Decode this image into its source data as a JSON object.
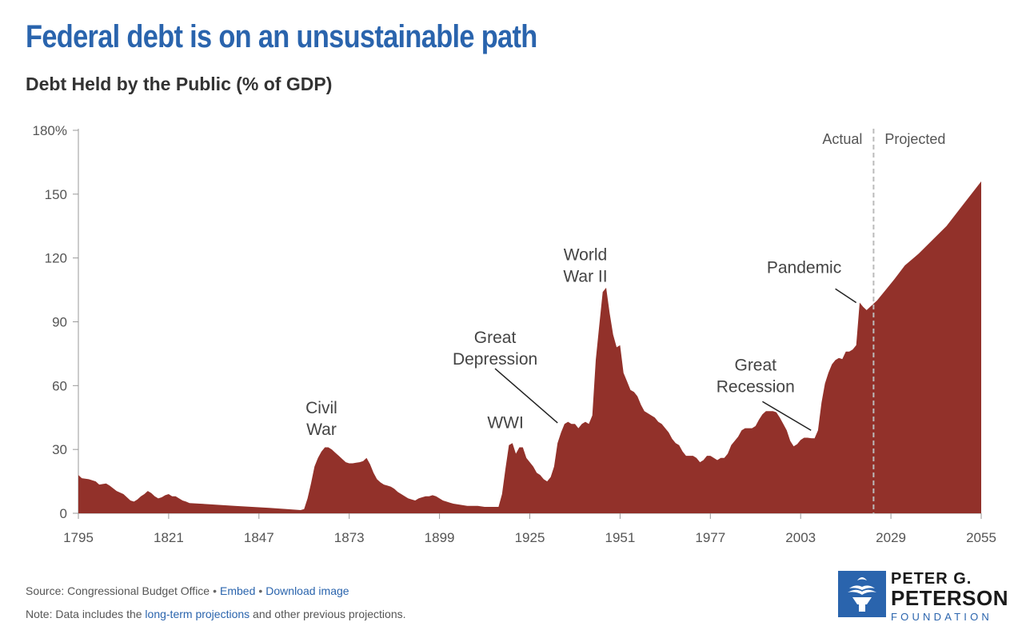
{
  "header": {
    "title": "Federal debt is on an unsustainable path",
    "subtitle": "Debt Held by the Public (% of GDP)"
  },
  "colors": {
    "title": "#2a64ad",
    "area": "#92312a",
    "link": "#2a64ad",
    "axis": "#999999"
  },
  "chart_data": {
    "type": "area",
    "title": "",
    "xlabel": "",
    "ylabel": "",
    "xlim": [
      1795,
      2055
    ],
    "ylim": [
      0,
      180
    ],
    "x_ticks": [
      "1795",
      "1821",
      "1847",
      "1873",
      "1899",
      "1925",
      "1951",
      "1977",
      "2003",
      "2029",
      "2055"
    ],
    "y_ticks": [
      "0",
      "30",
      "60",
      "90",
      "120",
      "150",
      "180%"
    ],
    "grid": false,
    "divider": {
      "x": 2024,
      "left_label": "Actual",
      "right_label": "Projected"
    },
    "series": [
      {
        "points": [
          [
            1795,
            18
          ],
          [
            1796,
            16.5
          ],
          [
            1798,
            16
          ],
          [
            1800,
            15
          ],
          [
            1801,
            13.5
          ],
          [
            1803,
            14
          ],
          [
            1804,
            13
          ],
          [
            1806,
            10.5
          ],
          [
            1808,
            9
          ],
          [
            1810,
            6
          ],
          [
            1811,
            5.5
          ],
          [
            1812,
            6.5
          ],
          [
            1813,
            8
          ],
          [
            1814,
            9
          ],
          [
            1815,
            10.5
          ],
          [
            1816,
            9.5
          ],
          [
            1817,
            8
          ],
          [
            1818,
            7
          ],
          [
            1819,
            7.5
          ],
          [
            1820,
            8.5
          ],
          [
            1821,
            9
          ],
          [
            1822,
            8
          ],
          [
            1823,
            8
          ],
          [
            1824,
            7
          ],
          [
            1825,
            6
          ],
          [
            1826,
            5.5
          ],
          [
            1827,
            4.8
          ],
          [
            1830,
            4.5
          ],
          [
            1840,
            3.5
          ],
          [
            1850,
            2.5
          ],
          [
            1855,
            2
          ],
          [
            1859,
            1.5
          ],
          [
            1860,
            2
          ],
          [
            1861,
            7
          ],
          [
            1862,
            14
          ],
          [
            1863,
            22
          ],
          [
            1864,
            26
          ],
          [
            1865,
            29
          ],
          [
            1866,
            31
          ],
          [
            1867,
            31
          ],
          [
            1868,
            30
          ],
          [
            1869,
            28.5
          ],
          [
            1870,
            27
          ],
          [
            1871,
            25.5
          ],
          [
            1872,
            24
          ],
          [
            1873,
            23.5
          ],
          [
            1874,
            23.5
          ],
          [
            1875,
            23.8
          ],
          [
            1876,
            24
          ],
          [
            1877,
            24.5
          ],
          [
            1878,
            26
          ],
          [
            1879,
            23
          ],
          [
            1880,
            19
          ],
          [
            1881,
            16
          ],
          [
            1882,
            14.5
          ],
          [
            1883,
            13.5
          ],
          [
            1884,
            13
          ],
          [
            1885,
            12.5
          ],
          [
            1886,
            11.5
          ],
          [
            1887,
            10
          ],
          [
            1888,
            9
          ],
          [
            1889,
            8
          ],
          [
            1890,
            7
          ],
          [
            1891,
            6.5
          ],
          [
            1892,
            6
          ],
          [
            1893,
            7
          ],
          [
            1894,
            7.5
          ],
          [
            1895,
            8
          ],
          [
            1896,
            8
          ],
          [
            1897,
            8.5
          ],
          [
            1898,
            8
          ],
          [
            1899,
            7
          ],
          [
            1900,
            6
          ],
          [
            1901,
            5.5
          ],
          [
            1902,
            5
          ],
          [
            1903,
            4.5
          ],
          [
            1905,
            4
          ],
          [
            1907,
            3.5
          ],
          [
            1910,
            3.5
          ],
          [
            1912,
            3
          ],
          [
            1914,
            3
          ],
          [
            1915,
            3
          ],
          [
            1916,
            3
          ],
          [
            1917,
            9
          ],
          [
            1918,
            21
          ],
          [
            1919,
            32
          ],
          [
            1920,
            33
          ],
          [
            1921,
            28
          ],
          [
            1922,
            31
          ],
          [
            1923,
            31
          ],
          [
            1924,
            26
          ],
          [
            1925,
            24
          ],
          [
            1926,
            22
          ],
          [
            1927,
            19
          ],
          [
            1928,
            18
          ],
          [
            1929,
            16
          ],
          [
            1930,
            15
          ],
          [
            1931,
            17
          ],
          [
            1932,
            22
          ],
          [
            1933,
            33
          ],
          [
            1934,
            38
          ],
          [
            1935,
            42
          ],
          [
            1936,
            43
          ],
          [
            1937,
            42
          ],
          [
            1938,
            42
          ],
          [
            1939,
            40
          ],
          [
            1940,
            42
          ],
          [
            1941,
            43
          ],
          [
            1942,
            42
          ],
          [
            1943,
            46
          ],
          [
            1944,
            72
          ],
          [
            1945,
            88
          ],
          [
            1946,
            104
          ],
          [
            1947,
            106
          ],
          [
            1948,
            94
          ],
          [
            1949,
            84
          ],
          [
            1950,
            78
          ],
          [
            1951,
            79
          ],
          [
            1952,
            66
          ],
          [
            1953,
            62
          ],
          [
            1954,
            58
          ],
          [
            1955,
            57
          ],
          [
            1956,
            55
          ],
          [
            1957,
            51
          ],
          [
            1958,
            48
          ],
          [
            1959,
            47
          ],
          [
            1960,
            46
          ],
          [
            1961,
            45
          ],
          [
            1962,
            43
          ],
          [
            1963,
            42
          ],
          [
            1964,
            40
          ],
          [
            1965,
            38
          ],
          [
            1966,
            35
          ],
          [
            1967,
            33
          ],
          [
            1968,
            32
          ],
          [
            1969,
            29
          ],
          [
            1970,
            27
          ],
          [
            1971,
            27
          ],
          [
            1972,
            27
          ],
          [
            1973,
            26
          ],
          [
            1974,
            24
          ],
          [
            1975,
            25
          ],
          [
            1976,
            27
          ],
          [
            1977,
            27
          ],
          [
            1978,
            26
          ],
          [
            1979,
            25
          ],
          [
            1980,
            26
          ],
          [
            1981,
            26
          ],
          [
            1982,
            28
          ],
          [
            1983,
            32
          ],
          [
            1984,
            34
          ],
          [
            1985,
            36
          ],
          [
            1986,
            39
          ],
          [
            1987,
            40
          ],
          [
            1988,
            40
          ],
          [
            1989,
            40
          ],
          [
            1990,
            41
          ],
          [
            1991,
            44
          ],
          [
            1992,
            46.5
          ],
          [
            1993,
            48
          ],
          [
            1994,
            48
          ],
          [
            1995,
            48
          ],
          [
            1996,
            47.5
          ],
          [
            1997,
            45
          ],
          [
            1998,
            42
          ],
          [
            1999,
            39
          ],
          [
            2000,
            34
          ],
          [
            2001,
            31.5
          ],
          [
            2002,
            32.5
          ],
          [
            2003,
            34.5
          ],
          [
            2004,
            35.5
          ],
          [
            2005,
            35.5
          ],
          [
            2006,
            35.3
          ],
          [
            2007,
            35.2
          ],
          [
            2008,
            39
          ],
          [
            2009,
            52
          ],
          [
            2010,
            61
          ],
          [
            2011,
            66
          ],
          [
            2012,
            70
          ],
          [
            2013,
            72
          ],
          [
            2014,
            73
          ],
          [
            2015,
            72.5
          ],
          [
            2016,
            76
          ],
          [
            2017,
            76
          ],
          [
            2018,
            77
          ],
          [
            2019,
            79
          ],
          [
            2020,
            99
          ],
          [
            2021,
            97
          ],
          [
            2022,
            95.5
          ],
          [
            2023,
            97
          ],
          [
            2024,
            98.5
          ],
          [
            2025,
            100
          ],
          [
            2027,
            104
          ],
          [
            2030,
            110
          ],
          [
            2033,
            116.5
          ],
          [
            2037,
            122
          ],
          [
            2041,
            128.5
          ],
          [
            2045,
            135
          ],
          [
            2050,
            145.5
          ],
          [
            2055,
            156
          ]
        ]
      }
    ],
    "annotations": [
      {
        "lines": [
          "Civil",
          "War"
        ],
        "x": 1865,
        "y": 47,
        "align": "center"
      },
      {
        "lines": [
          "WWI"
        ],
        "x": 1918,
        "y": 40,
        "align": "center"
      },
      {
        "lines": [
          "Great",
          "Depression"
        ],
        "x": 1915,
        "y": 80,
        "align": "center",
        "pointer": [
          [
            1915,
            68
          ],
          [
            1933,
            42.5
          ]
        ]
      },
      {
        "lines": [
          "World",
          "War II"
        ],
        "x": 1941,
        "y": 119,
        "align": "center"
      },
      {
        "lines": [
          "Great",
          "Recession"
        ],
        "x": 1990,
        "y": 67,
        "align": "center",
        "pointer": [
          [
            1992,
            52.5
          ],
          [
            2006,
            39
          ]
        ]
      },
      {
        "lines": [
          "Pandemic"
        ],
        "x": 2004,
        "y": 113,
        "align": "center",
        "pointer": [
          [
            2013,
            105.5
          ],
          [
            2019,
            99
          ]
        ]
      }
    ]
  },
  "footer": {
    "source_label": "Source: Congressional Budget Office",
    "embed_label": "Embed",
    "download_label": "Download image",
    "note_prefix": "Note: Data includes the ",
    "note_link": "long-term projections",
    "note_suffix": " and other previous projections."
  },
  "logo": {
    "line1": "PETER G.",
    "line2": "PETERSON",
    "line3": "FOUNDATION",
    "icon": "torch-icon"
  }
}
